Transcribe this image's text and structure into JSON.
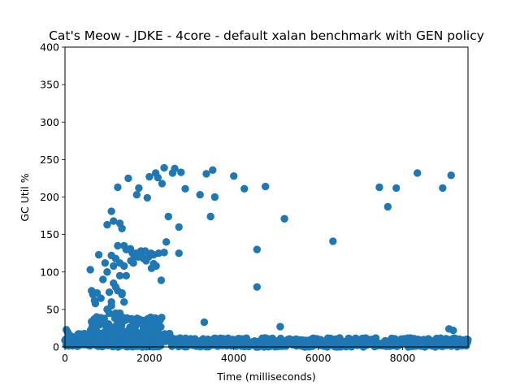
{
  "chart_data": {
    "type": "scatter",
    "title": "Cat's Meow - JDKE - 4core -  default xalan benchmark with GEN policy",
    "xlabel": "Time (milliseconds)",
    "ylabel": "GC Util %",
    "xlim": [
      0,
      9550
    ],
    "ylim": [
      0,
      400
    ],
    "xticks": [
      0,
      2000,
      4000,
      6000,
      8000
    ],
    "yticks": [
      0,
      50,
      100,
      150,
      200,
      250,
      300,
      350,
      400
    ],
    "grid": false,
    "legend": "none",
    "marker_color": "#1f77b4",
    "series": [
      {
        "x": [
          1000,
          1100,
          1150,
          1250,
          1300,
          1350,
          1400,
          1450,
          1500,
          1550,
          1600,
          1650,
          1700,
          1750,
          1800,
          1900,
          1950,
          2000,
          2050,
          2100,
          2150,
          2200,
          2300,
          2350,
          2350,
          2400,
          2450,
          2550,
          2600,
          2700,
          2700,
          2750,
          2850,
          3200,
          3350,
          3450,
          3500,
          3550,
          4000,
          4250,
          4550,
          4550,
          4750,
          5200,
          6350,
          7450,
          7650,
          7850,
          8350,
          8950,
          9150,
          600,
          630,
          660,
          700,
          720,
          760,
          800,
          850,
          900,
          950,
          1000,
          1050,
          1100,
          1150,
          1200,
          1250,
          1300,
          1350,
          1400,
          1450,
          1500,
          1560,
          1620,
          1680,
          1740,
          1800,
          1860,
          1920,
          1980,
          2040,
          2100,
          2160,
          2220,
          2280,
          1100,
          1150,
          1200,
          1250,
          1300,
          1350,
          1400,
          1100,
          1200,
          1300,
          1000,
          1050,
          1350,
          750,
          3300,
          5100,
          9100,
          9200,
          30,
          60,
          90
        ],
        "y": [
          163,
          181,
          168,
          213,
          165,
          158,
          135,
          130,
          225,
          131,
          125,
          120,
          203,
          212,
          128,
          128,
          199,
          227,
          105,
          111,
          232,
          226,
          218,
          126,
          239,
          140,
          174,
          232,
          238,
          125,
          160,
          233,
          211,
          203,
          231,
          174,
          236,
          200,
          228,
          211,
          130,
          80,
          214,
          171,
          141,
          213,
          187,
          212,
          232,
          212,
          229,
          103,
          75,
          70,
          62,
          58,
          72,
          123,
          65,
          90,
          112,
          100,
          73,
          122,
          108,
          118,
          135,
          112,
          72,
          108,
          95,
          130,
          115,
          112,
          125,
          120,
          122,
          118,
          115,
          120,
          125,
          123,
          108,
          125,
          89,
          60,
          85,
          80,
          75,
          95,
          70,
          60,
          55,
          45,
          45,
          50,
          45,
          40,
          40,
          33,
          27,
          24,
          22,
          23,
          20,
          17
        ]
      }
    ],
    "low_band_note_values": {
      "x_start": 0,
      "x_end": 9550,
      "y_max": 12
    }
  }
}
